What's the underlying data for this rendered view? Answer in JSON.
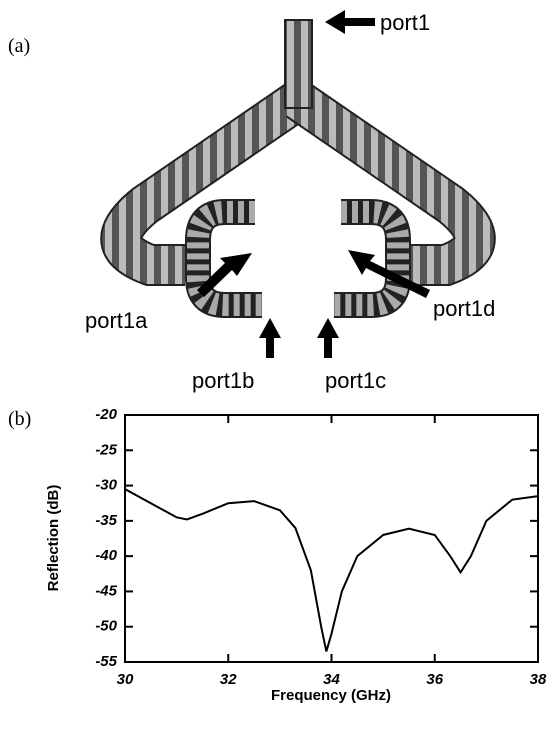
{
  "panel_labels": [
    "(a)",
    "(b)"
  ],
  "ports": [
    "port1",
    "port1a",
    "port1b",
    "port1c",
    "port1d"
  ],
  "chart_data": {
    "type": "line",
    "x_label": "Frequency (GHz)",
    "y_label": "Reflection (dB)",
    "x": [
      30,
      30.5,
      31,
      31.2,
      31.5,
      32,
      32.5,
      33,
      33.3,
      33.6,
      33.8,
      33.9,
      34.0,
      34.2,
      34.5,
      35,
      35.5,
      36,
      36.3,
      36.5,
      36.7,
      37,
      37.5,
      38
    ],
    "values": [
      -30.5,
      -32.5,
      -34.5,
      -34.8,
      -34,
      -32.5,
      -32.2,
      -33.5,
      -36,
      -42,
      -50,
      -53.5,
      -51,
      -45,
      -40,
      -37,
      -36.1,
      -37,
      -40,
      -42.3,
      -40,
      -35,
      -32,
      -31.5
    ],
    "color": "#000000",
    "xlim": [
      30,
      38
    ],
    "xticks": [
      30,
      32,
      34,
      36,
      38
    ],
    "ylim": [
      -55,
      -20
    ],
    "yticks": [
      -20,
      -25,
      -30,
      -35,
      -40,
      -45,
      -50,
      -55
    ]
  }
}
